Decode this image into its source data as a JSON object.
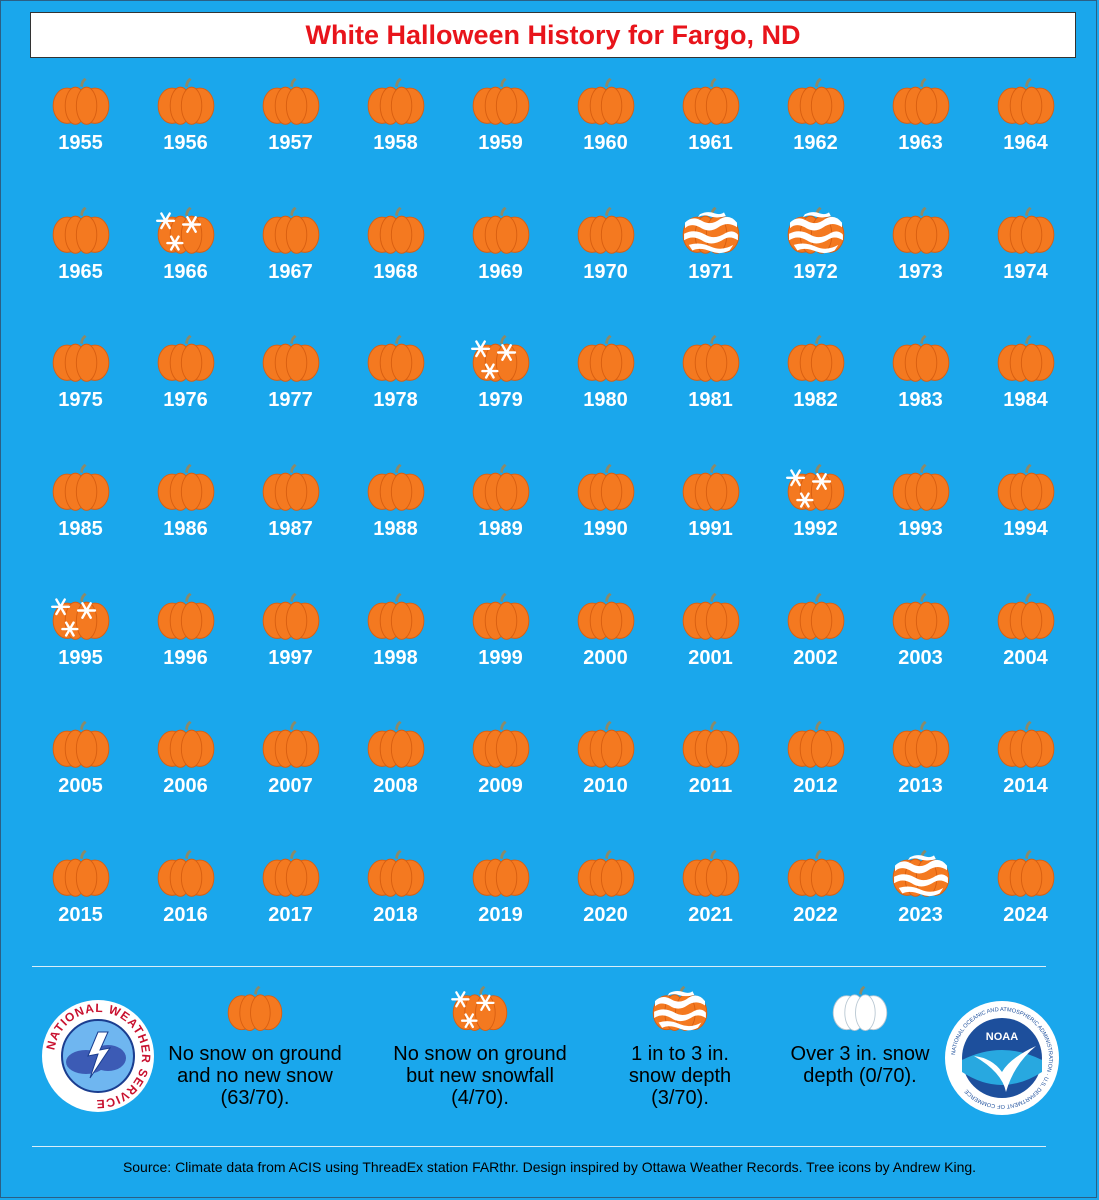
{
  "title": "White Halloween History for Fargo, ND",
  "chart_data": {
    "type": "table",
    "title": "White Halloween History for Fargo, ND",
    "years": [
      1955,
      1956,
      1957,
      1958,
      1959,
      1960,
      1961,
      1962,
      1963,
      1964,
      1965,
      1966,
      1967,
      1968,
      1969,
      1970,
      1971,
      1972,
      1973,
      1974,
      1975,
      1976,
      1977,
      1978,
      1979,
      1980,
      1981,
      1982,
      1983,
      1984,
      1985,
      1986,
      1987,
      1988,
      1989,
      1990,
      1991,
      1992,
      1993,
      1994,
      1995,
      1996,
      1997,
      1998,
      1999,
      2000,
      2001,
      2002,
      2003,
      2004,
      2005,
      2006,
      2007,
      2008,
      2009,
      2010,
      2011,
      2012,
      2013,
      2014,
      2015,
      2016,
      2017,
      2018,
      2019,
      2020,
      2021,
      2022,
      2023,
      2024
    ],
    "categories": [
      "none",
      "none",
      "none",
      "none",
      "none",
      "none",
      "none",
      "none",
      "none",
      "none",
      "none",
      "snowfall",
      "none",
      "none",
      "none",
      "none",
      "depth_1_3",
      "depth_1_3",
      "none",
      "none",
      "none",
      "none",
      "none",
      "none",
      "snowfall",
      "none",
      "none",
      "none",
      "none",
      "none",
      "none",
      "none",
      "none",
      "none",
      "none",
      "none",
      "none",
      "snowfall",
      "none",
      "none",
      "snowfall",
      "none",
      "none",
      "none",
      "none",
      "none",
      "none",
      "none",
      "none",
      "none",
      "none",
      "none",
      "none",
      "none",
      "none",
      "none",
      "none",
      "none",
      "none",
      "none",
      "none",
      "none",
      "none",
      "none",
      "none",
      "none",
      "none",
      "none",
      "depth_1_3",
      "none"
    ],
    "counts": {
      "none": 63,
      "snowfall": 4,
      "depth_1_3": 3,
      "depth_over_3": 0,
      "total": 70
    }
  },
  "legend": [
    {
      "key": "none",
      "label": "No snow on ground and no new snow (63/70)."
    },
    {
      "key": "snowfall",
      "label": "No snow on ground but new snowfall (4/70)."
    },
    {
      "key": "depth_1_3",
      "label": "1 in to 3 in. snow depth (3/70)."
    },
    {
      "key": "depth_over_3",
      "label": "Over 3 in. snow depth (0/70)."
    }
  ],
  "logos": {
    "nws_text": "NATIONAL WEATHER SERVICE",
    "noaa_text": "NOAA",
    "noaa_ring_text": "NATIONAL OCEANIC AND ATMOSPHERIC ADMINISTRATION · U.S. DEPARTMENT OF COMMERCE"
  },
  "source": "Source: Climate data from ACIS using ThreadEx station FARthr. Design inspired by Ottawa Weather Records. Tree icons by Andrew King.",
  "colors": {
    "background": "#1aa7ec",
    "title": "#e8141b",
    "pumpkin": "#f47920",
    "pumpkin_dark": "#d85e10",
    "stem": "#8a8a6a",
    "snow": "#ffffff"
  }
}
